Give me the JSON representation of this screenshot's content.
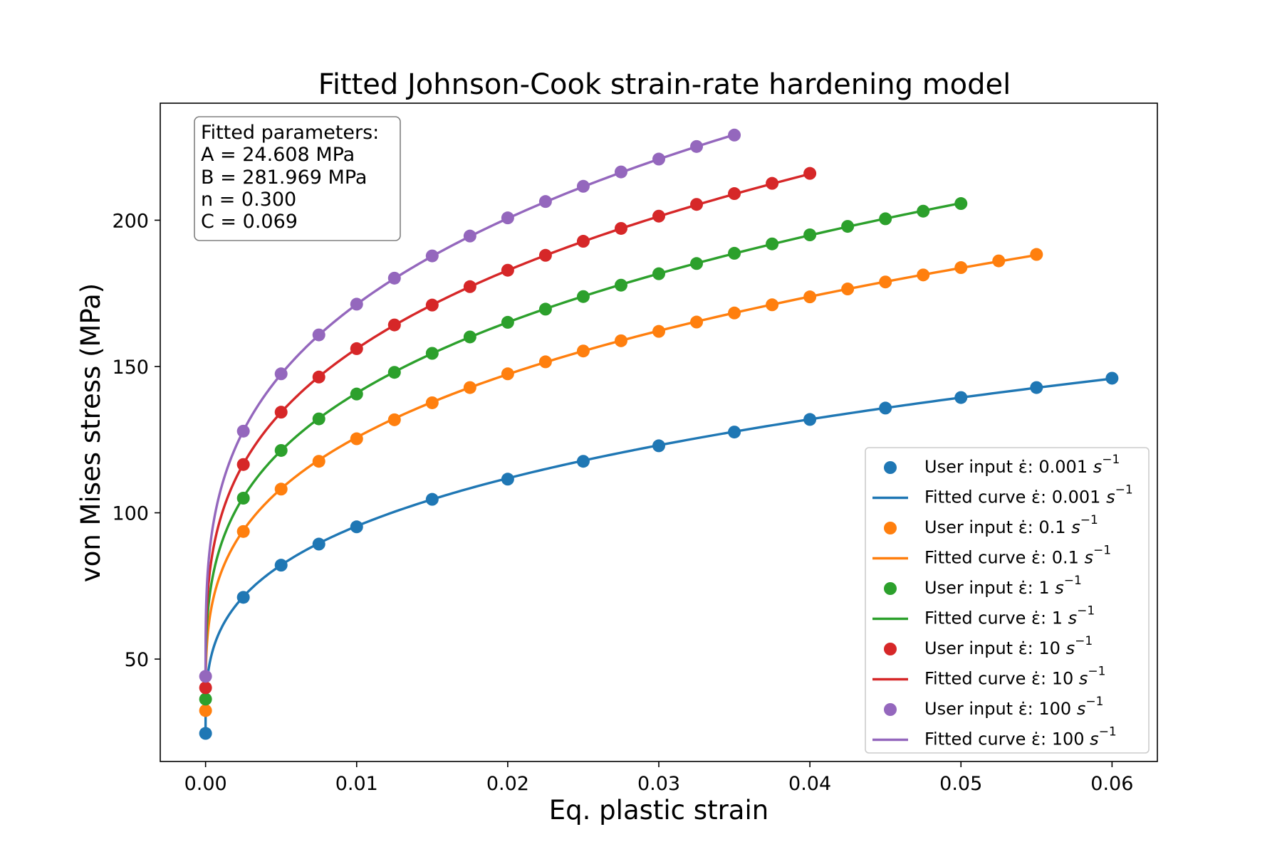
{
  "chart_data": {
    "type": "scatter",
    "title": "Fitted Johnson-Cook strain-rate hardening model",
    "xlabel": "Eq. plastic strain",
    "ylabel": "von Mises stress (MPa)",
    "xlim": [
      -0.003,
      0.063
    ],
    "ylim": [
      15,
      240
    ],
    "xticks": [
      0.0,
      0.01,
      0.02,
      0.03,
      0.04,
      0.05,
      0.06
    ],
    "xtick_labels": [
      "0.00",
      "0.01",
      "0.02",
      "0.03",
      "0.04",
      "0.05",
      "0.06"
    ],
    "yticks": [
      50,
      100,
      150,
      200
    ],
    "ytick_labels": [
      "50",
      "100",
      "150",
      "200"
    ],
    "legend_location": "lower-right",
    "annotation": {
      "lines": [
        "Fitted parameters:",
        "A = 24.608 MPa",
        "B = 281.969 MPa",
        "n = 0.300",
        "C = 0.069"
      ]
    },
    "model": {
      "A": 24.608,
      "B": 281.969,
      "n": 0.3,
      "C": 0.069,
      "ref_rate": 0.001
    },
    "series": [
      {
        "rate_label": "0.001",
        "color": "#1f77b4",
        "scatter_label": "User input ε̇: 0.001 ",
        "fit_label": "Fitted curve ε̇: 0.001 ",
        "x": [
          0,
          0.0025,
          0.005,
          0.0075,
          0.01,
          0.015,
          0.02,
          0.025,
          0.03,
          0.035,
          0.04,
          0.045,
          0.05,
          0.055,
          0.06
        ],
        "y": [
          24.6,
          71.1,
          82.1,
          89.3,
          95.2,
          104.6,
          111.5,
          117.6,
          122.9,
          127.6,
          131.9,
          135.8,
          139.4,
          142.8,
          146.0
        ]
      },
      {
        "rate_label": "0.1",
        "color": "#ff7f0e",
        "scatter_label": "User input ε̇: 0.1 ",
        "fit_label": "Fitted curve ε̇: 0.1 ",
        "x": [
          0,
          0.0025,
          0.005,
          0.0075,
          0.01,
          0.0125,
          0.015,
          0.0175,
          0.02,
          0.0225,
          0.025,
          0.0275,
          0.03,
          0.0325,
          0.035,
          0.0375,
          0.04,
          0.0425,
          0.045,
          0.0475,
          0.05,
          0.0525,
          0.055
        ],
        "y": [
          32.4,
          93.6,
          108.1,
          117.6,
          125.3,
          131.8,
          137.6,
          142.8,
          147.5,
          151.6,
          155.3,
          158.8,
          162.0,
          165.2,
          168.3,
          171.1,
          173.8,
          176.5,
          178.9,
          181.3,
          183.8,
          186.1,
          188.3
        ]
      },
      {
        "rate_label": "1",
        "color": "#2ca02c",
        "scatter_label": "User input ε̇: 1 ",
        "fit_label": "Fitted curve ε̇: 1 ",
        "x": [
          0,
          0.0025,
          0.005,
          0.0075,
          0.01,
          0.0125,
          0.015,
          0.0175,
          0.02,
          0.0225,
          0.025,
          0.0275,
          0.03,
          0.0325,
          0.035,
          0.0375,
          0.04,
          0.0425,
          0.045,
          0.0475,
          0.05
        ],
        "y": [
          36.3,
          105.0,
          121.3,
          132.1,
          140.6,
          148.0,
          154.5,
          160.1,
          165.1,
          169.6,
          173.9,
          177.8,
          181.7,
          185.2,
          188.7,
          191.9,
          195.0,
          197.9,
          200.5,
          203.1,
          205.7
        ]
      },
      {
        "rate_label": "10",
        "color": "#d62728",
        "scatter_label": "User input ε̇: 10 ",
        "fit_label": "Fitted curve ε̇: 10 ",
        "x": [
          0,
          0.0025,
          0.005,
          0.0075,
          0.01,
          0.0125,
          0.015,
          0.0175,
          0.02,
          0.0225,
          0.025,
          0.0275,
          0.03,
          0.0325,
          0.035,
          0.0375,
          0.04
        ],
        "y": [
          40.2,
          116.5,
          134.4,
          146.4,
          156.1,
          164.2,
          171.0,
          177.3,
          182.9,
          188.0,
          192.8,
          197.2,
          201.4,
          205.4,
          209.1,
          212.6,
          216.0
        ]
      },
      {
        "rate_label": "100",
        "color": "#9467bd",
        "scatter_label": "User input ε̇: 100 ",
        "fit_label": "Fitted curve ε̇: 100 ",
        "x": [
          0,
          0.0025,
          0.005,
          0.0075,
          0.01,
          0.0125,
          0.015,
          0.0175,
          0.02,
          0.0225,
          0.025,
          0.0275,
          0.03,
          0.0325,
          0.035
        ],
        "y": [
          44.1,
          127.9,
          147.5,
          160.8,
          171.3,
          180.2,
          187.8,
          194.6,
          200.8,
          206.4,
          211.6,
          216.5,
          220.9,
          225.2,
          229.1
        ]
      }
    ]
  }
}
